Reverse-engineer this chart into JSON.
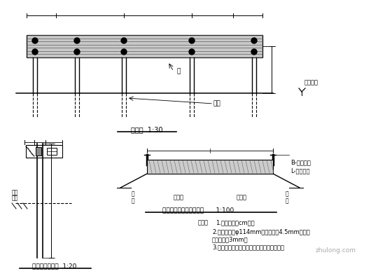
{
  "bg_color": "#ffffff",
  "line_color": "#000000",
  "notes_text": [
    "说明：1.本图尺寸以cm计。",
    "2.立柱直径为φ114mm，立柱壁厚4.5mm，波形",
    "钢板厚度为3mm。",
    "3.本型适用于土质路基承载置钢护栏的情况。"
  ],
  "label_ban": "板",
  "label_lizhu": "立柱",
  "label_lujian": "路肩标高",
  "label_lmiantu": "立面图  1:30",
  "label_detail": "路侧护栏大样图  1:20",
  "label_section": "标准断面护栏布置位置图      1:100",
  "label_B": "B-路肩宽度",
  "label_L": "L-路架宽度",
  "label_lujian2": "路\n肩",
  "label_xingche": "行车道",
  "label_shengping": "声屏",
  "label_shifan": "示范",
  "watermark": "zhulong.com"
}
